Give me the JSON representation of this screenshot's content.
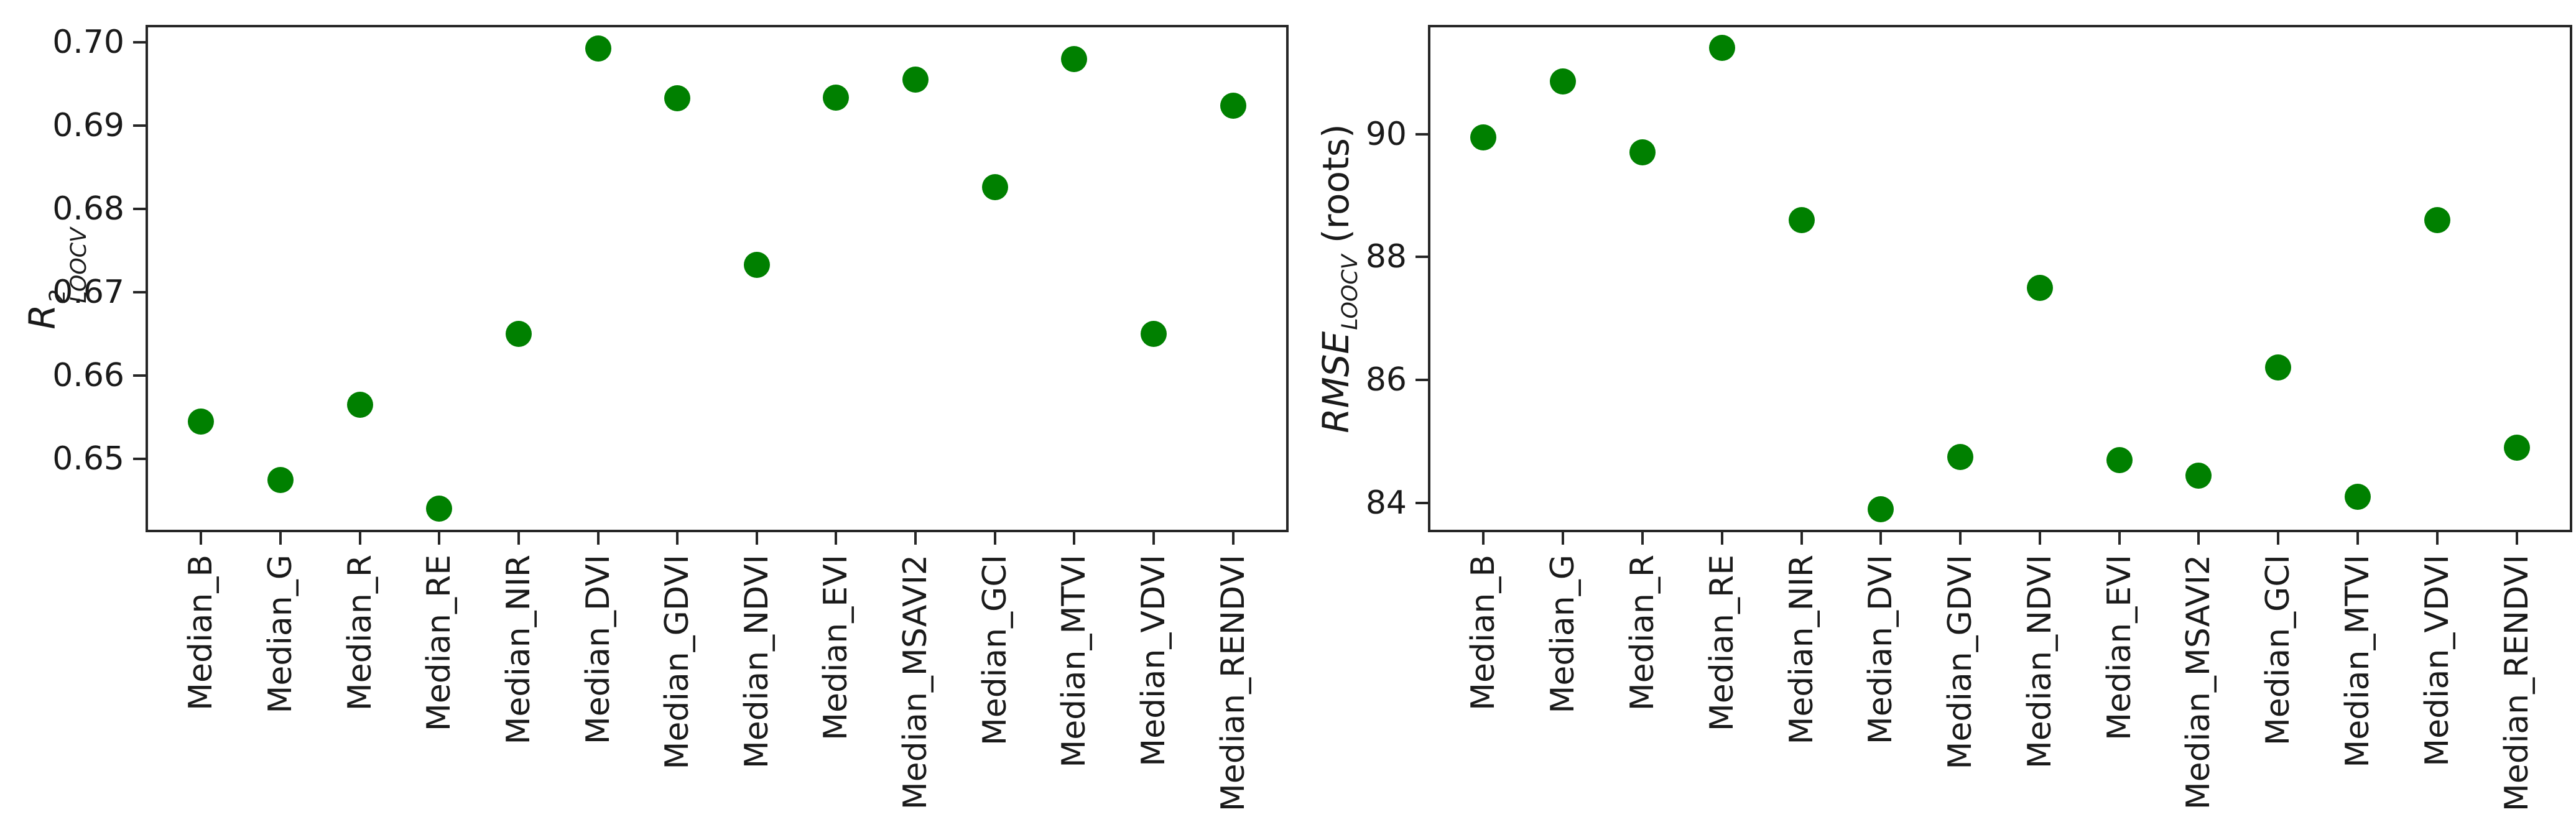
{
  "figure": {
    "background": "#ffffff",
    "marker_color": "#008000",
    "axis_color": "#262626",
    "text_color": "#1a1a1a"
  },
  "chart_data": [
    {
      "type": "scatter",
      "id": "r2-loocv",
      "title": "",
      "xlabel": "",
      "ylabel_text": "R2_LOOCV",
      "ylabel_parts": {
        "italic_main": "R",
        "sup": "2",
        "sub": "LOOCV",
        "suffix": ""
      },
      "legend": "none",
      "grid": "off",
      "categories": [
        "Median_B",
        "Median_G",
        "Median_R",
        "Median_RE",
        "Median_NIR",
        "Median_DVI",
        "Median_GDVI",
        "Median_NDVI",
        "Median_EVI",
        "Median_MSAVI2",
        "Median_GCI",
        "Median_MTVI",
        "Median_VDVI",
        "Median_RENDVI"
      ],
      "values": [
        0.6545,
        0.6475,
        0.6565,
        0.644,
        0.665,
        0.6993,
        0.6933,
        0.6733,
        0.6934,
        0.6955,
        0.6826,
        0.698,
        0.665,
        0.6924
      ],
      "ytick_values": [
        0.65,
        0.66,
        0.67,
        0.68,
        0.69,
        0.7
      ],
      "ytick_labels": [
        "0.65",
        "0.66",
        "0.67",
        "0.68",
        "0.69",
        "0.70"
      ],
      "ylim": [
        0.6412,
        0.7021
      ],
      "marker_color": "#008000"
    },
    {
      "type": "scatter",
      "id": "rmse-loocv",
      "title": "",
      "xlabel": "",
      "ylabel_text": "RMSE_LOOCV (roots)",
      "ylabel_parts": {
        "italic_main": "RMSE",
        "sup": "",
        "sub": "LOOCV",
        "suffix": " (roots)"
      },
      "legend": "none",
      "grid": "off",
      "categories": [
        "Median_B",
        "Median_G",
        "Median_R",
        "Median_RE",
        "Median_NIR",
        "Median_DVI",
        "Median_GDVI",
        "Median_NDVI",
        "Median_EVI",
        "Median_MSAVI2",
        "Median_GCI",
        "Median_MTVI",
        "Median_VDVI",
        "Median_RENDVI"
      ],
      "values": [
        89.95,
        90.85,
        89.7,
        91.4,
        88.6,
        83.9,
        84.75,
        87.5,
        84.7,
        84.45,
        86.2,
        84.1,
        88.6,
        84.9
      ],
      "ytick_values": [
        84,
        86,
        88,
        90
      ],
      "ytick_labels": [
        "84",
        "86",
        "88",
        "90"
      ],
      "ylim": [
        83.525,
        91.775
      ],
      "marker_color": "#008000"
    }
  ]
}
